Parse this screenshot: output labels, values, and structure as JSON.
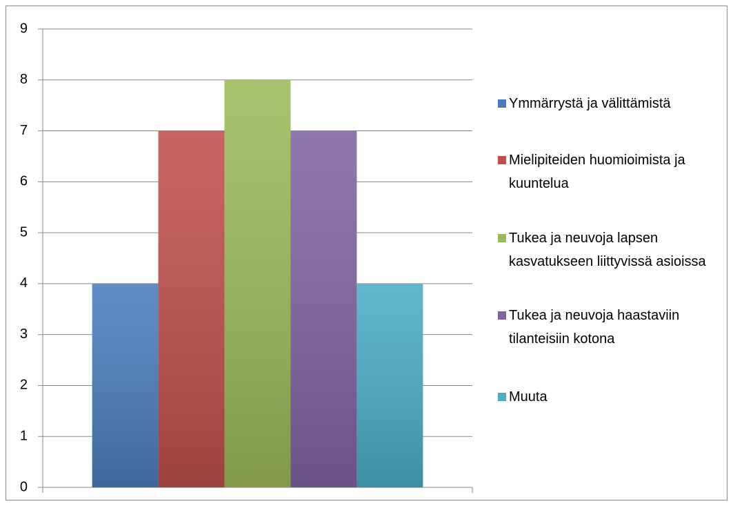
{
  "chart_data": {
    "type": "bar",
    "categories": [
      null
    ],
    "series": [
      {
        "name": "Ymmärrystä ja välittämistä",
        "color": "#4a7ebb",
        "values": [
          4
        ]
      },
      {
        "name": "Mielipiteiden huomioimista ja kuuntelua",
        "color": "#c0504d",
        "values": [
          7
        ]
      },
      {
        "name": "Tukea ja neuvoja lapsen kasvatukseen liittyvissä asioissa",
        "color": "#9bbb59",
        "values": [
          8
        ]
      },
      {
        "name": "Tukea ja neuvoja haastaviin tilanteisiin kotona",
        "color": "#8064a2",
        "values": [
          7
        ]
      },
      {
        "name": "Muuta",
        "color": "#4bacc6",
        "values": [
          4
        ]
      }
    ],
    "ylim": [
      0,
      9
    ],
    "yticks": [
      0,
      1,
      2,
      3,
      4,
      5,
      6,
      7,
      8,
      9
    ],
    "grid": true,
    "legend": "right"
  }
}
